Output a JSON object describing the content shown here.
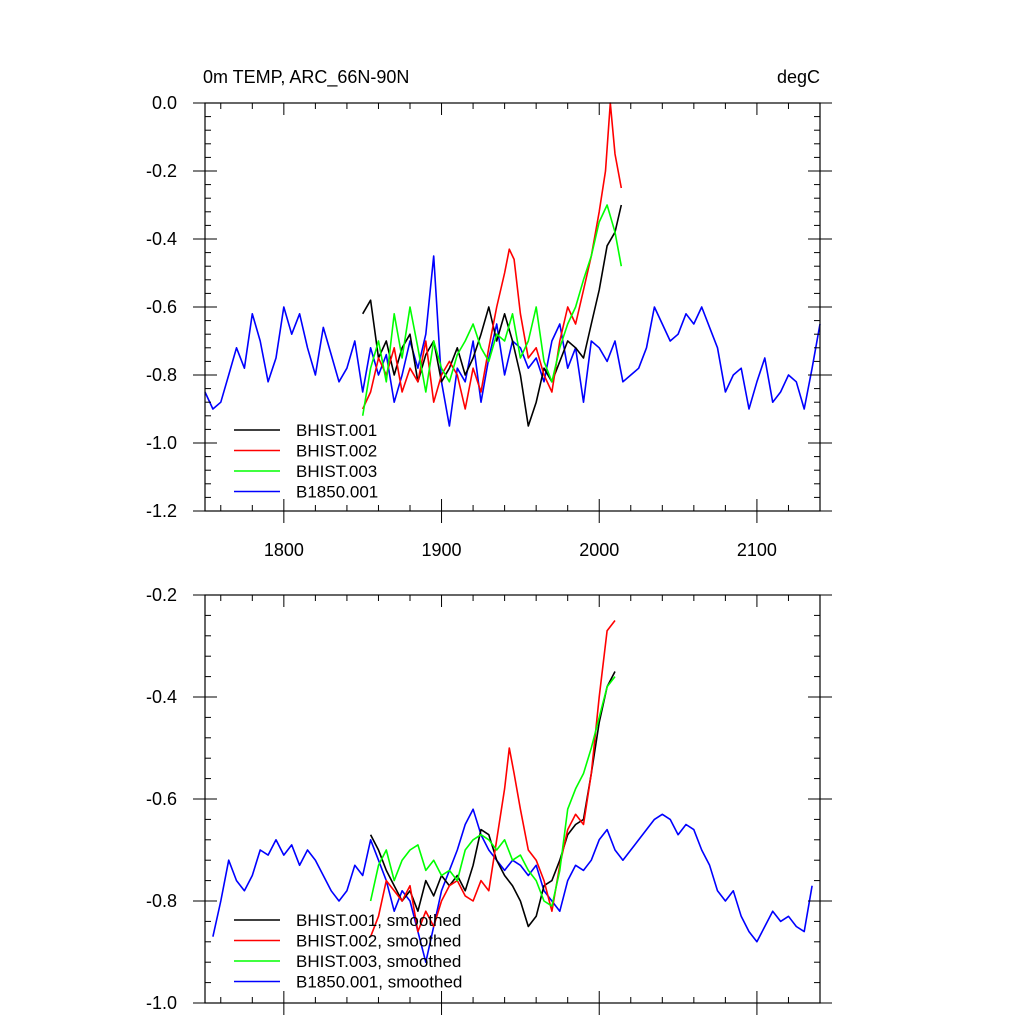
{
  "chart_data": [
    {
      "type": "line",
      "title": "0m TEMP, ARC_66N-90N",
      "units": "degC",
      "xlim": [
        1750,
        2140
      ],
      "ylim": [
        -1.2,
        0.0
      ],
      "xticks": [
        1800,
        1900,
        2000,
        2100
      ],
      "xtick_labels": [
        "1800",
        "1900",
        "2000",
        "2100"
      ],
      "yticks": [
        -1.2,
        -1.0,
        -0.8,
        -0.6,
        -0.4,
        -0.2,
        0.0
      ],
      "ytick_labels": [
        "-1.2",
        "-1.0",
        "-0.8",
        "-0.6",
        "-0.4",
        "-0.2",
        "0.0"
      ],
      "legend_position": "bottom-left",
      "series": [
        {
          "name": "BHIST.001",
          "color": "#000000",
          "x": [
            1850,
            1855,
            1860,
            1865,
            1870,
            1875,
            1880,
            1885,
            1890,
            1895,
            1900,
            1905,
            1910,
            1915,
            1920,
            1925,
            1930,
            1935,
            1940,
            1945,
            1950,
            1955,
            1960,
            1965,
            1970,
            1975,
            1980,
            1985,
            1990,
            1995,
            2000,
            2005,
            2010,
            2014
          ],
          "y": [
            -0.62,
            -0.58,
            -0.75,
            -0.7,
            -0.8,
            -0.72,
            -0.68,
            -0.82,
            -0.74,
            -0.7,
            -0.82,
            -0.78,
            -0.72,
            -0.8,
            -0.75,
            -0.68,
            -0.6,
            -0.7,
            -0.62,
            -0.7,
            -0.8,
            -0.95,
            -0.88,
            -0.78,
            -0.82,
            -0.76,
            -0.7,
            -0.72,
            -0.75,
            -0.65,
            -0.55,
            -0.42,
            -0.38,
            -0.3
          ]
        },
        {
          "name": "BHIST.002",
          "color": "#ff0000",
          "x": [
            1850,
            1855,
            1860,
            1865,
            1870,
            1875,
            1880,
            1885,
            1890,
            1895,
            1900,
            1905,
            1910,
            1915,
            1920,
            1925,
            1930,
            1935,
            1940,
            1943,
            1946,
            1950,
            1955,
            1960,
            1965,
            1970,
            1975,
            1980,
            1985,
            1990,
            1995,
            2000,
            2004,
            2007,
            2010,
            2014
          ],
          "y": [
            -0.9,
            -0.85,
            -0.75,
            -0.8,
            -0.72,
            -0.85,
            -0.78,
            -0.82,
            -0.7,
            -0.88,
            -0.8,
            -0.76,
            -0.8,
            -0.9,
            -0.78,
            -0.85,
            -0.72,
            -0.6,
            -0.5,
            -0.43,
            -0.46,
            -0.62,
            -0.75,
            -0.72,
            -0.8,
            -0.85,
            -0.7,
            -0.6,
            -0.65,
            -0.55,
            -0.45,
            -0.32,
            -0.2,
            0.0,
            -0.15,
            -0.25
          ]
        },
        {
          "name": "BHIST.003",
          "color": "#00ff00",
          "x": [
            1850,
            1855,
            1860,
            1865,
            1870,
            1875,
            1880,
            1885,
            1890,
            1895,
            1900,
            1905,
            1910,
            1915,
            1920,
            1925,
            1930,
            1935,
            1940,
            1945,
            1950,
            1955,
            1960,
            1965,
            1970,
            1975,
            1980,
            1985,
            1990,
            1995,
            2000,
            2005,
            2010,
            2014
          ],
          "y": [
            -0.92,
            -0.78,
            -0.7,
            -0.82,
            -0.62,
            -0.75,
            -0.6,
            -0.72,
            -0.85,
            -0.7,
            -0.78,
            -0.82,
            -0.74,
            -0.7,
            -0.65,
            -0.72,
            -0.76,
            -0.68,
            -0.7,
            -0.62,
            -0.75,
            -0.7,
            -0.6,
            -0.76,
            -0.82,
            -0.72,
            -0.65,
            -0.6,
            -0.52,
            -0.45,
            -0.35,
            -0.3,
            -0.38,
            -0.48
          ]
        },
        {
          "name": "B1850.001",
          "color": "#0000ff",
          "x": [
            1750,
            1755,
            1760,
            1765,
            1770,
            1775,
            1780,
            1785,
            1790,
            1795,
            1800,
            1805,
            1810,
            1815,
            1820,
            1825,
            1830,
            1835,
            1840,
            1845,
            1850,
            1855,
            1860,
            1865,
            1870,
            1875,
            1880,
            1885,
            1890,
            1895,
            1900,
            1905,
            1910,
            1915,
            1920,
            1925,
            1930,
            1935,
            1940,
            1945,
            1950,
            1955,
            1960,
            1965,
            1970,
            1975,
            1980,
            1985,
            1990,
            1995,
            2000,
            2005,
            2010,
            2015,
            2020,
            2025,
            2030,
            2035,
            2040,
            2045,
            2050,
            2055,
            2060,
            2065,
            2070,
            2075,
            2080,
            2085,
            2090,
            2095,
            2100,
            2105,
            2110,
            2115,
            2120,
            2125,
            2130,
            2135,
            2140
          ],
          "y": [
            -0.85,
            -0.9,
            -0.88,
            -0.8,
            -0.72,
            -0.78,
            -0.62,
            -0.7,
            -0.82,
            -0.75,
            -0.6,
            -0.68,
            -0.62,
            -0.72,
            -0.8,
            -0.66,
            -0.74,
            -0.82,
            -0.78,
            -0.7,
            -0.85,
            -0.72,
            -0.8,
            -0.74,
            -0.88,
            -0.8,
            -0.7,
            -0.78,
            -0.68,
            -0.45,
            -0.82,
            -0.95,
            -0.78,
            -0.82,
            -0.7,
            -0.88,
            -0.75,
            -0.65,
            -0.8,
            -0.7,
            -0.72,
            -0.78,
            -0.75,
            -0.82,
            -0.7,
            -0.65,
            -0.78,
            -0.72,
            -0.88,
            -0.7,
            -0.72,
            -0.76,
            -0.7,
            -0.82,
            -0.8,
            -0.78,
            -0.72,
            -0.6,
            -0.65,
            -0.7,
            -0.68,
            -0.62,
            -0.65,
            -0.6,
            -0.66,
            -0.72,
            -0.85,
            -0.8,
            -0.78,
            -0.9,
            -0.82,
            -0.75,
            -0.88,
            -0.85,
            -0.8,
            -0.82,
            -0.9,
            -0.78,
            -0.65
          ]
        }
      ]
    },
    {
      "type": "line",
      "title": "",
      "xlim": [
        1750,
        2140
      ],
      "ylim": [
        -1.0,
        -0.2
      ],
      "xticks": [
        1800,
        1900,
        2000,
        2100
      ],
      "yticks": [
        -1.0,
        -0.8,
        -0.6,
        -0.4,
        -0.2
      ],
      "ytick_labels": [
        "-1.0",
        "-0.8",
        "-0.6",
        "-0.4",
        "-0.2"
      ],
      "legend_position": "bottom-left",
      "series": [
        {
          "name": "BHIST.001, smoothed",
          "color": "#000000",
          "x": [
            1855,
            1860,
            1865,
            1870,
            1875,
            1880,
            1885,
            1890,
            1895,
            1900,
            1905,
            1910,
            1915,
            1920,
            1925,
            1930,
            1935,
            1940,
            1945,
            1950,
            1955,
            1960,
            1965,
            1970,
            1975,
            1980,
            1985,
            1990,
            1995,
            2000,
            2005,
            2010
          ],
          "y": [
            -0.67,
            -0.7,
            -0.74,
            -0.77,
            -0.8,
            -0.78,
            -0.82,
            -0.76,
            -0.79,
            -0.75,
            -0.77,
            -0.75,
            -0.78,
            -0.73,
            -0.66,
            -0.67,
            -0.72,
            -0.75,
            -0.77,
            -0.8,
            -0.85,
            -0.83,
            -0.77,
            -0.76,
            -0.72,
            -0.67,
            -0.65,
            -0.64,
            -0.55,
            -0.45,
            -0.38,
            -0.35
          ]
        },
        {
          "name": "BHIST.002, smoothed",
          "color": "#ff0000",
          "x": [
            1855,
            1860,
            1865,
            1870,
            1875,
            1880,
            1885,
            1890,
            1895,
            1900,
            1905,
            1910,
            1915,
            1920,
            1925,
            1930,
            1935,
            1940,
            1943,
            1946,
            1950,
            1955,
            1960,
            1965,
            1970,
            1975,
            1980,
            1985,
            1990,
            1995,
            2000,
            2005,
            2010
          ],
          "y": [
            -0.87,
            -0.83,
            -0.76,
            -0.78,
            -0.8,
            -0.77,
            -0.86,
            -0.82,
            -0.85,
            -0.8,
            -0.77,
            -0.76,
            -0.79,
            -0.8,
            -0.76,
            -0.78,
            -0.68,
            -0.58,
            -0.5,
            -0.55,
            -0.62,
            -0.7,
            -0.72,
            -0.76,
            -0.82,
            -0.73,
            -0.66,
            -0.63,
            -0.65,
            -0.55,
            -0.4,
            -0.27,
            -0.25
          ]
        },
        {
          "name": "BHIST.003, smoothed",
          "color": "#00ff00",
          "x": [
            1855,
            1860,
            1865,
            1870,
            1875,
            1880,
            1885,
            1890,
            1895,
            1900,
            1905,
            1910,
            1915,
            1920,
            1925,
            1930,
            1935,
            1940,
            1945,
            1950,
            1955,
            1960,
            1965,
            1970,
            1975,
            1980,
            1985,
            1990,
            1995,
            2000,
            2005,
            2010
          ],
          "y": [
            -0.8,
            -0.73,
            -0.7,
            -0.76,
            -0.72,
            -0.7,
            -0.69,
            -0.74,
            -0.72,
            -0.75,
            -0.74,
            -0.76,
            -0.7,
            -0.68,
            -0.67,
            -0.68,
            -0.7,
            -0.68,
            -0.72,
            -0.71,
            -0.74,
            -0.76,
            -0.8,
            -0.81,
            -0.74,
            -0.62,
            -0.58,
            -0.55,
            -0.5,
            -0.44,
            -0.38,
            -0.36
          ]
        },
        {
          "name": "B1850.001, smoothed",
          "color": "#0000ff",
          "x": [
            1755,
            1760,
            1765,
            1770,
            1775,
            1780,
            1785,
            1790,
            1795,
            1800,
            1805,
            1810,
            1815,
            1820,
            1825,
            1830,
            1835,
            1840,
            1845,
            1850,
            1855,
            1860,
            1865,
            1870,
            1875,
            1880,
            1885,
            1890,
            1895,
            1900,
            1905,
            1910,
            1915,
            1920,
            1925,
            1930,
            1935,
            1940,
            1945,
            1950,
            1955,
            1960,
            1965,
            1970,
            1975,
            1980,
            1985,
            1990,
            1995,
            2000,
            2005,
            2010,
            2015,
            2020,
            2025,
            2030,
            2035,
            2040,
            2045,
            2050,
            2055,
            2060,
            2065,
            2070,
            2075,
            2080,
            2085,
            2090,
            2095,
            2100,
            2105,
            2110,
            2115,
            2120,
            2125,
            2130,
            2135
          ],
          "y": [
            -0.87,
            -0.8,
            -0.72,
            -0.76,
            -0.78,
            -0.75,
            -0.7,
            -0.71,
            -0.68,
            -0.71,
            -0.69,
            -0.73,
            -0.7,
            -0.72,
            -0.75,
            -0.78,
            -0.8,
            -0.78,
            -0.73,
            -0.75,
            -0.68,
            -0.72,
            -0.76,
            -0.82,
            -0.78,
            -0.8,
            -0.86,
            -0.92,
            -0.85,
            -0.78,
            -0.74,
            -0.7,
            -0.65,
            -0.62,
            -0.67,
            -0.7,
            -0.72,
            -0.74,
            -0.72,
            -0.73,
            -0.75,
            -0.73,
            -0.78,
            -0.8,
            -0.82,
            -0.76,
            -0.73,
            -0.74,
            -0.72,
            -0.68,
            -0.66,
            -0.7,
            -0.72,
            -0.7,
            -0.68,
            -0.66,
            -0.64,
            -0.63,
            -0.64,
            -0.67,
            -0.65,
            -0.66,
            -0.7,
            -0.73,
            -0.78,
            -0.8,
            -0.78,
            -0.83,
            -0.86,
            -0.88,
            -0.85,
            -0.82,
            -0.84,
            -0.83,
            -0.85,
            -0.86,
            -0.77
          ]
        }
      ]
    }
  ]
}
